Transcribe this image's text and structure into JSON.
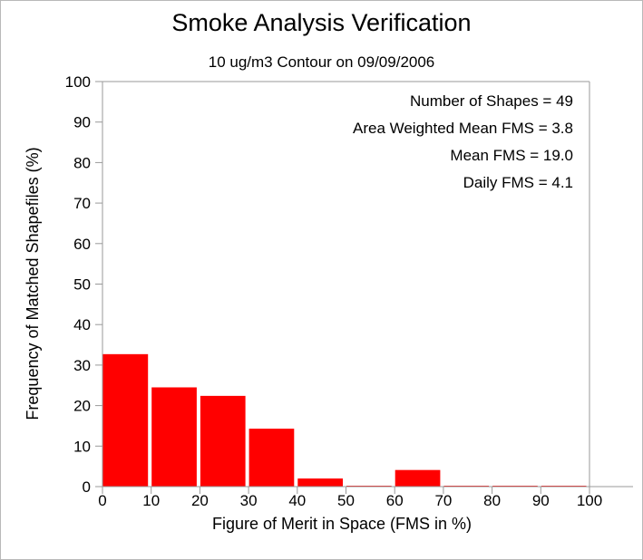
{
  "chart_data": {
    "type": "bar",
    "title": "Smoke Analysis Verification",
    "subtitle": "10 ug/m3 Contour on 09/09/2006",
    "xlabel": "Figure of Merit in Space (FMS in %)",
    "ylabel": "Frequency of Matched Shapefiles (%)",
    "xlim": [
      0,
      100
    ],
    "ylim": [
      0,
      100
    ],
    "x_ticks": [
      "0",
      "10",
      "20",
      "30",
      "40",
      "50",
      "60",
      "70",
      "80",
      "90",
      "100"
    ],
    "y_ticks": [
      "0",
      "10",
      "20",
      "30",
      "40",
      "50",
      "60",
      "70",
      "80",
      "90",
      "100"
    ],
    "bins": [
      [
        0,
        10
      ],
      [
        10,
        20
      ],
      [
        20,
        30
      ],
      [
        30,
        40
      ],
      [
        40,
        50
      ],
      [
        50,
        60
      ],
      [
        60,
        70
      ],
      [
        70,
        80
      ],
      [
        80,
        90
      ],
      [
        90,
        100
      ]
    ],
    "values": [
      32.7,
      24.5,
      22.4,
      14.3,
      2.0,
      0,
      4.1,
      0,
      0,
      0
    ],
    "bar_color": "#ff0000",
    "grid": false,
    "annotations": [
      "Number of Shapes = 49",
      "Area Weighted Mean FMS = 3.8",
      "Mean FMS = 19.0",
      "Daily FMS = 4.1"
    ]
  }
}
